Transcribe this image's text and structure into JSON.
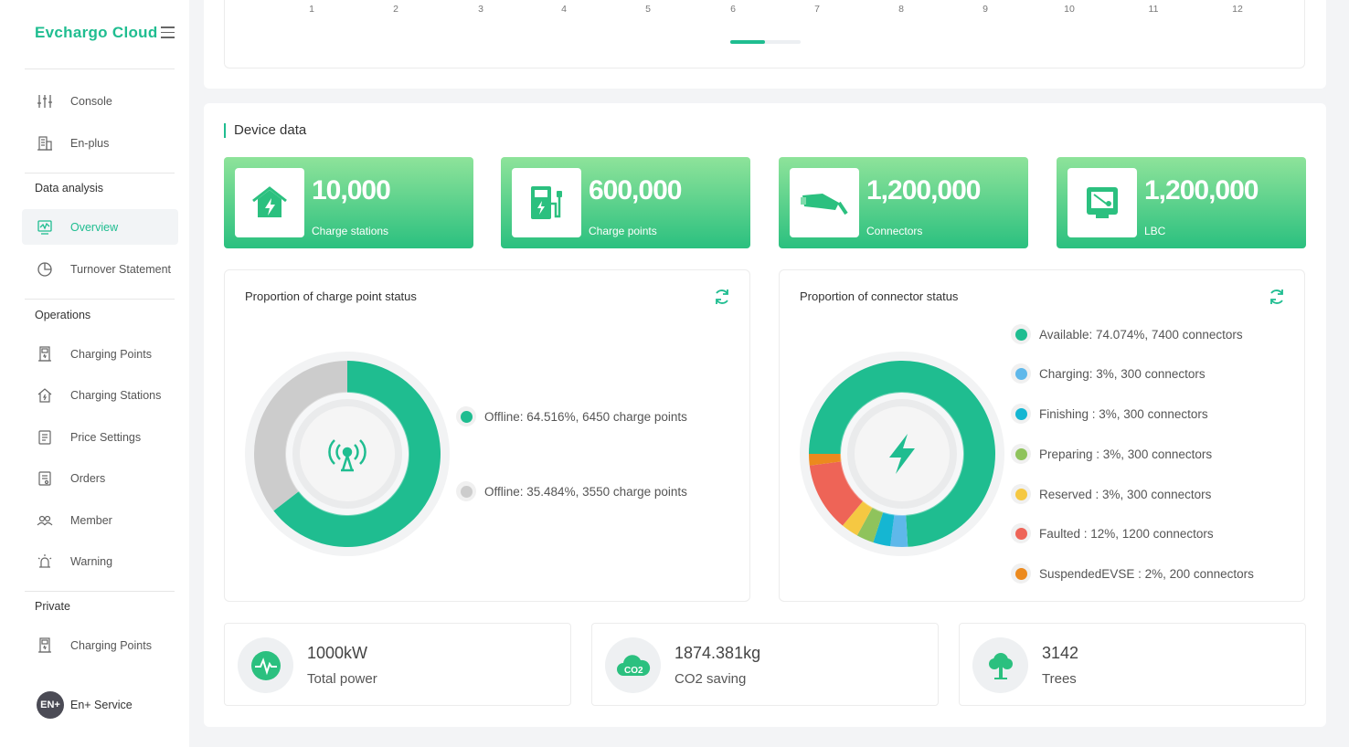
{
  "sidebar": {
    "brand": "Evchargo Cloud",
    "top_items": [
      {
        "label": "Console",
        "icon": "sliders-icon"
      },
      {
        "label": "En-plus",
        "icon": "building-icon"
      }
    ],
    "section_data_analysis": "Data analysis",
    "data_items": [
      {
        "label": "Overview",
        "icon": "monitor-chart-icon",
        "active": true
      },
      {
        "label": "Turnover Statement",
        "icon": "pie-chart-icon"
      }
    ],
    "section_operations": "Operations",
    "operation_items": [
      {
        "label": "Charging Points",
        "icon": "charger-icon"
      },
      {
        "label": "Charging Stations",
        "icon": "station-house-icon"
      },
      {
        "label": "Price Settings",
        "icon": "price-doc-icon"
      },
      {
        "label": "Orders",
        "icon": "orders-doc-icon"
      },
      {
        "label": "Member",
        "icon": "members-icon"
      },
      {
        "label": "Warning",
        "icon": "alarm-icon"
      }
    ],
    "section_private": "Private",
    "private_items": [
      {
        "label": "Charging Points",
        "icon": "charger-icon"
      }
    ],
    "service_logo": "EN+",
    "service_label": "En+ Service"
  },
  "top_chart": {
    "months": [
      "1",
      "2",
      "3",
      "4",
      "5",
      "6",
      "7",
      "8",
      "9",
      "10",
      "11",
      "12"
    ]
  },
  "device": {
    "title": "Device data",
    "stats": [
      {
        "value": "10,000",
        "caption": "Charge stations",
        "icon": "station-house-icon"
      },
      {
        "value": "600,000",
        "caption": "Charge points",
        "icon": "charger-pump-icon"
      },
      {
        "value": "1,200,000",
        "caption": "Connectors",
        "icon": "connector-plug-icon"
      },
      {
        "value": "1,200,000",
        "caption": "LBC",
        "icon": "lbc-device-icon"
      }
    ]
  },
  "charge_point_status": {
    "title": "Proportion of charge point status",
    "legend": [
      {
        "text": "Offline:  64.516%, 6450 charge points",
        "color": "#1fbd90"
      },
      {
        "text": "Offline:  35.484%, 3550 charge points",
        "color": "#cccccc"
      }
    ]
  },
  "connector_status": {
    "title": "Proportion of connector status",
    "legend": [
      {
        "text": "Available:  74.074%, 7400 connectors",
        "color": "#1fbd90"
      },
      {
        "text": "Charging:  3%, 300 connectors",
        "color": "#5fb8ea"
      },
      {
        "text": "Finishing : 3%, 300 connectors",
        "color": "#15b6d2"
      },
      {
        "text": "Preparing : 3%, 300 connectors",
        "color": "#8fc35c"
      },
      {
        "text": "Reserved : 3%, 300 connectors",
        "color": "#f5c842"
      },
      {
        "text": "Faulted : 12%, 1200 connectors",
        "color": "#ee6457"
      },
      {
        "text": "SuspendedEVSE : 2%, 200 connectors",
        "color": "#ec8a1e"
      }
    ]
  },
  "chart_data": [
    {
      "type": "pie",
      "title": "Proportion of charge point status",
      "labels": [
        "Offline",
        "Offline"
      ],
      "values": [
        64.516,
        35.484
      ],
      "counts": [
        6450,
        3550
      ],
      "colors": [
        "#1fbd90",
        "#cccccc"
      ]
    },
    {
      "type": "pie",
      "title": "Proportion of connector status",
      "labels": [
        "Available",
        "Charging",
        "Finishing",
        "Preparing",
        "Reserved",
        "Faulted",
        "SuspendedEVSE"
      ],
      "values": [
        74.074,
        3,
        3,
        3,
        3,
        12,
        2
      ],
      "counts": [
        7400,
        300,
        300,
        300,
        300,
        1200,
        200
      ],
      "colors": [
        "#1fbd90",
        "#5fb8ea",
        "#15b6d2",
        "#8fc35c",
        "#f5c842",
        "#ee6457",
        "#ec8a1e"
      ]
    }
  ],
  "summary": [
    {
      "value": "1000kW",
      "label": "Total power",
      "icon": "pulse-icon"
    },
    {
      "value": "1874.381kg",
      "label": "CO2 saving",
      "icon": "co2-cloud-icon"
    },
    {
      "value": "3142",
      "label": "Trees",
      "icon": "tree-icon"
    }
  ]
}
